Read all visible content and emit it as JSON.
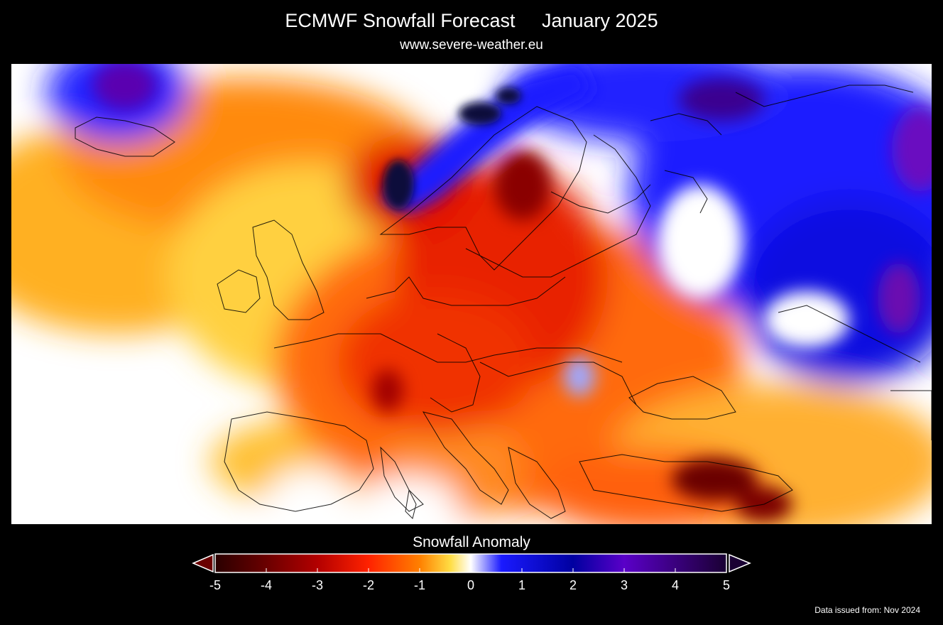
{
  "header": {
    "title": "ECMWF Snowfall Forecast     January 2025",
    "subtitle": "www.severe-weather.eu"
  },
  "legend": {
    "label": "Snowfall Anomaly",
    "ticks": [
      "-5",
      "-4",
      "-3",
      "-2",
      "-1",
      "0",
      "1",
      "2",
      "3",
      "4",
      "5"
    ],
    "min": -5,
    "max": 5,
    "colors": [
      "#2a0000",
      "#6a0000",
      "#b30000",
      "#ff2200",
      "#ff8000",
      "#ffdd44",
      "#ffffff",
      "#1a1aff",
      "#0000a0",
      "#5a00c8",
      "#1a0033"
    ]
  },
  "footer": {
    "issued": "Data issued from: Nov 2024"
  },
  "colors": {
    "background": "#000000",
    "negative_dark": "#3a0000",
    "negative": "#ff3300",
    "neutral": "#ffffff",
    "positive": "#0000cc",
    "positive_dark": "#2a0060"
  }
}
